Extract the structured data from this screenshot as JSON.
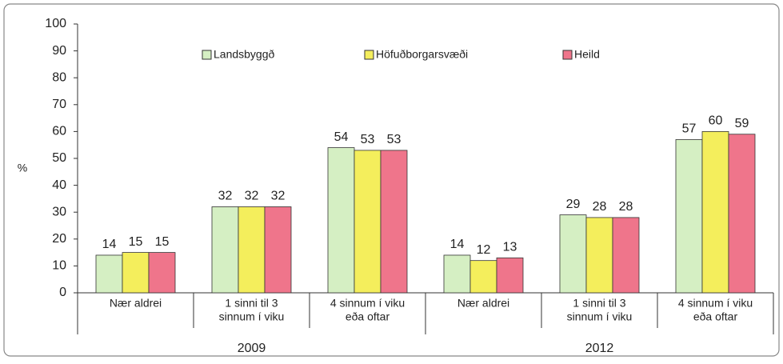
{
  "chart_data": {
    "type": "bar",
    "categories": [
      [
        "Nær aldrei"
      ],
      [
        "1 sinni til 3",
        "sinnum í viku"
      ],
      [
        "4 sinnum í viku",
        "eða oftar"
      ],
      [
        "Nær aldrei"
      ],
      [
        "1 sinni til 3",
        "sinnum í viku"
      ],
      [
        "4 sinnum í viku",
        "eða oftar"
      ]
    ],
    "groups": [
      "2009",
      "2012"
    ],
    "ylabel": "%",
    "series": [
      {
        "name": "Landsbyggð",
        "color": "#d5efc3",
        "values": [
          14,
          32,
          54,
          14,
          29,
          57
        ]
      },
      {
        "name": "Höfuðborgarsvæði",
        "color": "#f4ee5c",
        "values": [
          15,
          32,
          53,
          12,
          28,
          60
        ]
      },
      {
        "name": "Heild",
        "color": "#ef758b",
        "values": [
          15,
          32,
          53,
          13,
          28,
          59
        ]
      }
    ],
    "ylim": [
      0,
      100
    ],
    "yticks": [
      0,
      10,
      20,
      30,
      40,
      50,
      60,
      70,
      80,
      90,
      100
    ],
    "legend": "top"
  }
}
